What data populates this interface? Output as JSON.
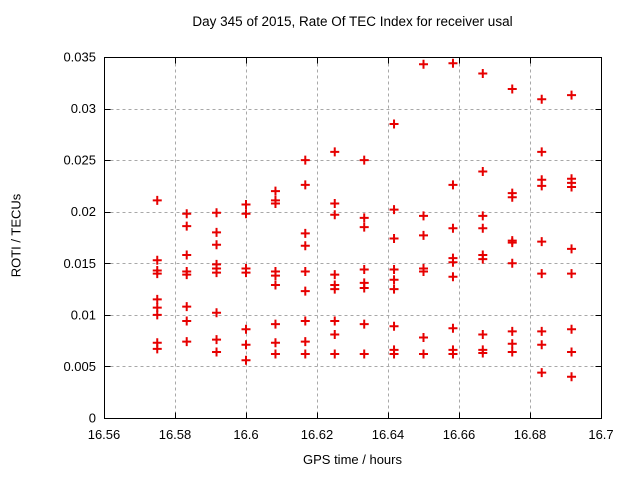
{
  "window": {
    "background": "#ffffff",
    "text_color": "#000000"
  },
  "chart_data": {
    "type": "scatter",
    "title": "Day 345 of 2015, Rate Of TEC Index for receiver usal",
    "xlabel": "GPS time / hours",
    "ylabel": "ROTI / TECUs",
    "xlim": [
      16.56,
      16.7
    ],
    "ylim": [
      0,
      0.035
    ],
    "grid": true,
    "grid_style": "dashed",
    "grid_color": "#a8a8a8",
    "frame_color": "#000000",
    "marker": "plus",
    "marker_color": "#e60000",
    "marker_size": 9,
    "legend": "none",
    "xticks": [
      {
        "value": 16.56,
        "label": "16.56"
      },
      {
        "value": 16.58,
        "label": "16.58"
      },
      {
        "value": 16.6,
        "label": "16.6"
      },
      {
        "value": 16.62,
        "label": "16.62"
      },
      {
        "value": 16.64,
        "label": "16.64"
      },
      {
        "value": 16.66,
        "label": "16.66"
      },
      {
        "value": 16.68,
        "label": "16.68"
      },
      {
        "value": 16.7,
        "label": "16.7"
      }
    ],
    "yticks": [
      {
        "value": 0,
        "label": "0"
      },
      {
        "value": 0.005,
        "label": "0.005"
      },
      {
        "value": 0.01,
        "label": "0.01"
      },
      {
        "value": 0.015,
        "label": "0.015"
      },
      {
        "value": 0.02,
        "label": "0.02"
      },
      {
        "value": 0.025,
        "label": "0.025"
      },
      {
        "value": 0.03,
        "label": "0.03"
      },
      {
        "value": 0.035,
        "label": "0.035"
      }
    ],
    "points": [
      [
        16.575,
        0.0211
      ],
      [
        16.575,
        0.0153
      ],
      [
        16.575,
        0.0143
      ],
      [
        16.575,
        0.014
      ],
      [
        16.575,
        0.0115
      ],
      [
        16.575,
        0.0107
      ],
      [
        16.575,
        0.01
      ],
      [
        16.575,
        0.0073
      ],
      [
        16.575,
        0.0067
      ],
      [
        16.5833,
        0.0198
      ],
      [
        16.5833,
        0.0186
      ],
      [
        16.5833,
        0.0158
      ],
      [
        16.5833,
        0.0142
      ],
      [
        16.5833,
        0.0139
      ],
      [
        16.5833,
        0.0108
      ],
      [
        16.5833,
        0.0094
      ],
      [
        16.5833,
        0.0074
      ],
      [
        16.5917,
        0.0199
      ],
      [
        16.5917,
        0.018
      ],
      [
        16.5917,
        0.0168
      ],
      [
        16.5917,
        0.0149
      ],
      [
        16.5917,
        0.0145
      ],
      [
        16.5917,
        0.0141
      ],
      [
        16.5917,
        0.0102
      ],
      [
        16.5917,
        0.0076
      ],
      [
        16.5917,
        0.0064
      ],
      [
        16.6,
        0.0207
      ],
      [
        16.6,
        0.0198
      ],
      [
        16.6,
        0.0145
      ],
      [
        16.6,
        0.0141
      ],
      [
        16.6,
        0.0086
      ],
      [
        16.6,
        0.0071
      ],
      [
        16.6,
        0.0056
      ],
      [
        16.6083,
        0.022
      ],
      [
        16.6083,
        0.0211
      ],
      [
        16.6083,
        0.0208
      ],
      [
        16.6083,
        0.0142
      ],
      [
        16.6083,
        0.0138
      ],
      [
        16.6083,
        0.0129
      ],
      [
        16.6083,
        0.0091
      ],
      [
        16.6083,
        0.0073
      ],
      [
        16.6083,
        0.0062
      ],
      [
        16.6167,
        0.025
      ],
      [
        16.6167,
        0.0226
      ],
      [
        16.6167,
        0.0179
      ],
      [
        16.6167,
        0.0167
      ],
      [
        16.6167,
        0.0142
      ],
      [
        16.6167,
        0.0123
      ],
      [
        16.6167,
        0.0094
      ],
      [
        16.6167,
        0.0074
      ],
      [
        16.6167,
        0.0062
      ],
      [
        16.625,
        0.0258
      ],
      [
        16.625,
        0.0208
      ],
      [
        16.625,
        0.0197
      ],
      [
        16.625,
        0.0139
      ],
      [
        16.625,
        0.0129
      ],
      [
        16.625,
        0.0125
      ],
      [
        16.625,
        0.0094
      ],
      [
        16.625,
        0.0081
      ],
      [
        16.625,
        0.0062
      ],
      [
        16.6333,
        0.025
      ],
      [
        16.6333,
        0.0194
      ],
      [
        16.6333,
        0.0185
      ],
      [
        16.6333,
        0.0144
      ],
      [
        16.6333,
        0.0131
      ],
      [
        16.6333,
        0.0126
      ],
      [
        16.6333,
        0.0091
      ],
      [
        16.6333,
        0.0062
      ],
      [
        16.6417,
        0.0285
      ],
      [
        16.6417,
        0.0202
      ],
      [
        16.6417,
        0.0174
      ],
      [
        16.6417,
        0.0144
      ],
      [
        16.6417,
        0.0134
      ],
      [
        16.6417,
        0.0125
      ],
      [
        16.6417,
        0.0089
      ],
      [
        16.6417,
        0.0066
      ],
      [
        16.6417,
        0.0062
      ],
      [
        16.65,
        0.0343
      ],
      [
        16.65,
        0.0196
      ],
      [
        16.65,
        0.0177
      ],
      [
        16.65,
        0.0145
      ],
      [
        16.65,
        0.0142
      ],
      [
        16.65,
        0.0078
      ],
      [
        16.65,
        0.0062
      ],
      [
        16.6583,
        0.0344
      ],
      [
        16.6583,
        0.0226
      ],
      [
        16.6583,
        0.0184
      ],
      [
        16.6583,
        0.0155
      ],
      [
        16.6583,
        0.0151
      ],
      [
        16.6583,
        0.0137
      ],
      [
        16.6583,
        0.0087
      ],
      [
        16.6583,
        0.0066
      ],
      [
        16.6583,
        0.0062
      ],
      [
        16.6667,
        0.0334
      ],
      [
        16.6667,
        0.0239
      ],
      [
        16.6667,
        0.0196
      ],
      [
        16.6667,
        0.0184
      ],
      [
        16.6667,
        0.0158
      ],
      [
        16.6667,
        0.0154
      ],
      [
        16.6667,
        0.0081
      ],
      [
        16.6667,
        0.0066
      ],
      [
        16.6667,
        0.0063
      ],
      [
        16.675,
        0.0319
      ],
      [
        16.675,
        0.0218
      ],
      [
        16.675,
        0.0214
      ],
      [
        16.675,
        0.0172
      ],
      [
        16.675,
        0.017
      ],
      [
        16.675,
        0.015
      ],
      [
        16.675,
        0.0084
      ],
      [
        16.675,
        0.0072
      ],
      [
        16.675,
        0.0064
      ],
      [
        16.6833,
        0.0309
      ],
      [
        16.6833,
        0.0258
      ],
      [
        16.6833,
        0.0231
      ],
      [
        16.6833,
        0.0225
      ],
      [
        16.6833,
        0.0171
      ],
      [
        16.6833,
        0.014
      ],
      [
        16.6833,
        0.0084
      ],
      [
        16.6833,
        0.0071
      ],
      [
        16.6833,
        0.0044
      ],
      [
        16.6917,
        0.0313
      ],
      [
        16.6917,
        0.0232
      ],
      [
        16.6917,
        0.0228
      ],
      [
        16.6917,
        0.0224
      ],
      [
        16.6917,
        0.0164
      ],
      [
        16.6917,
        0.014
      ],
      [
        16.6917,
        0.0086
      ],
      [
        16.6917,
        0.0064
      ],
      [
        16.6917,
        0.004
      ]
    ]
  }
}
